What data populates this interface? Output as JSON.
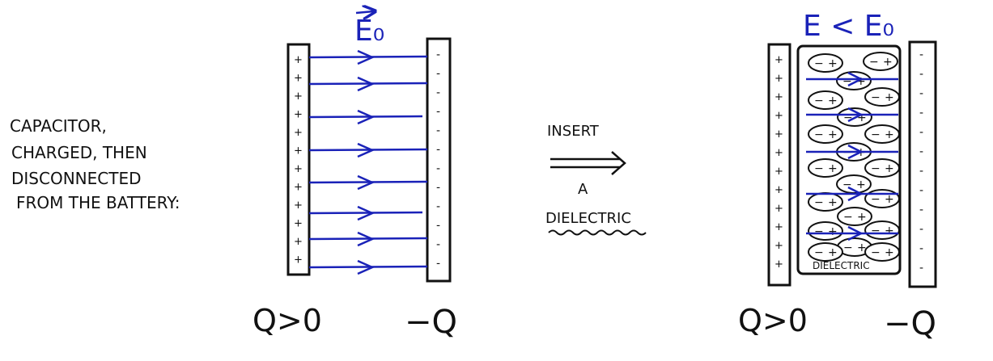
{
  "caption": {
    "lines": [
      "CAPACITOR,",
      "CHARGED, THEN",
      "DISCONNECTED",
      "FROM THE BATTERY:"
    ]
  },
  "left_capacitor": {
    "field_label": "E₀",
    "plus_sign": "+",
    "minus_sign": "-",
    "left_charge": "Q>0",
    "right_charge": "−Q"
  },
  "middle": {
    "line1": "INSERT",
    "line2": "A",
    "line3": "DIELECTRIC"
  },
  "right_capacitor": {
    "field_label": "E < E₀",
    "plus_sign": "+",
    "minus_sign": "-",
    "dielectric_label": "DIELECTRIC",
    "molecule_minus": "−",
    "molecule_plus": "+",
    "left_charge": "Q>0",
    "right_charge": "−Q"
  },
  "colors": {
    "ink": "#111111",
    "field_blue": "#1a22b8"
  }
}
